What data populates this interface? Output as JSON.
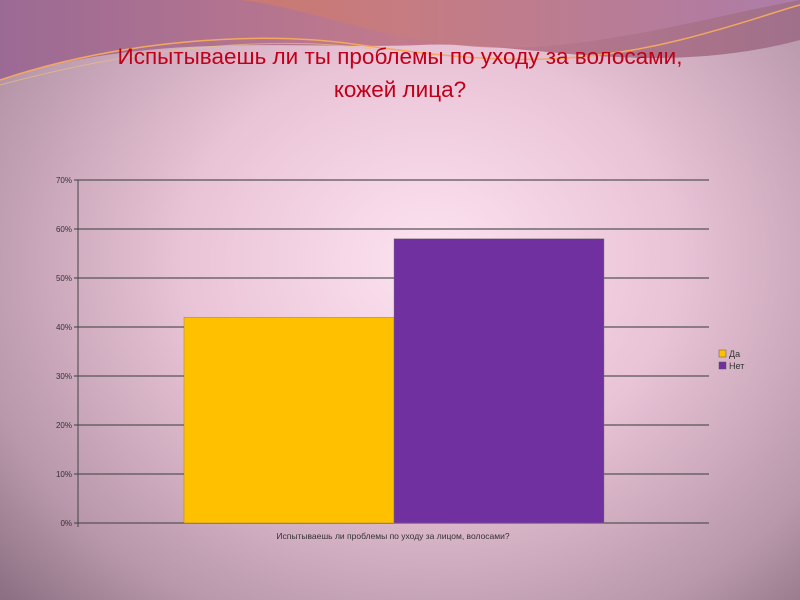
{
  "slide": {
    "title_line1": "Испытываешь ли ты проблемы по уходу за волосами,",
    "title_line2": "кожей лица?"
  },
  "chart_data": {
    "type": "bar",
    "categories": [
      "Испытываешь ли проблемы по уходу за лицом, волосами?"
    ],
    "series": [
      {
        "name": "Да",
        "values": [
          42
        ],
        "color": "#ffc000"
      },
      {
        "name": "Нет",
        "values": [
          58
        ],
        "color": "#7030a0"
      }
    ],
    "ylim": [
      0,
      70
    ],
    "yticks": [
      "0%",
      "10%",
      "20%",
      "30%",
      "40%",
      "50%",
      "60%",
      "70%"
    ],
    "grid": true,
    "legend": "right"
  }
}
